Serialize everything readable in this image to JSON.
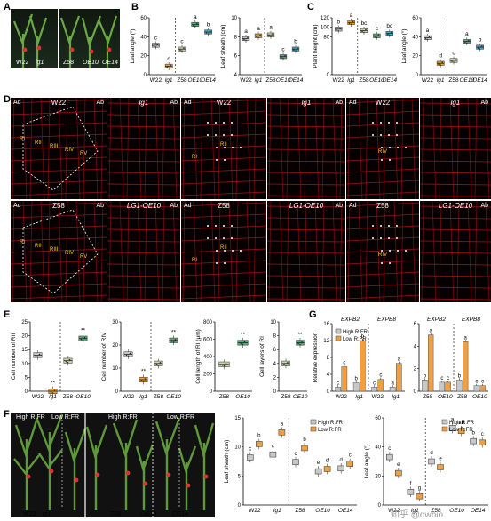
{
  "panels": {
    "A": {
      "label": "A",
      "left_label": "W22",
      "left_label2": "lg1",
      "right_labels": [
        "Z58",
        "OE10",
        "OE14"
      ]
    },
    "B": {
      "label": "B"
    },
    "C": {
      "label": "C"
    },
    "D": {
      "label": "D",
      "row1_titles": [
        "W22",
        "lg1",
        "W22",
        "lg1",
        "W22",
        "lg1"
      ],
      "row2_titles": [
        "Z58",
        "LG1-OE10",
        "Z58",
        "LG1-OE10",
        "Z58",
        "LG1-OE10"
      ],
      "ad": "Ad",
      "ab": "Ab",
      "region_tags": [
        "RI",
        "RII",
        "RIII",
        "RIV",
        "RV"
      ],
      "tag_RI": "RI",
      "tag_RII": "RII",
      "tag_RIV": "RIV"
    },
    "E": {
      "label": "E"
    },
    "F": {
      "label": "F",
      "high": "High R:FR",
      "low": "Low R:FR",
      "plants_left": [
        "W22",
        "lg1"
      ],
      "plants_right": [
        "Z58",
        "OE10",
        "OE14"
      ]
    },
    "G": {
      "label": "G"
    }
  },
  "colors": {
    "w22": "#c8c8c8",
    "lg1": "#f0a020",
    "z58": "#c8d8a8",
    "oe10": "#5aa878",
    "oe14": "#40a8c8",
    "high": "#c8c8c8",
    "low": "#f0a040"
  },
  "chart_data": [
    {
      "id": "B1",
      "type": "box",
      "ylabel": "Leaf angle (°)",
      "ylim": [
        0,
        60
      ],
      "yticks": [
        0,
        20,
        40,
        60
      ],
      "categories": [
        "W22",
        "lg1",
        "Z58",
        "OE10",
        "OE14"
      ],
      "medians": [
        31,
        9,
        27,
        53,
        45
      ],
      "letters": [
        "c",
        "d",
        "c",
        "a",
        "b"
      ]
    },
    {
      "id": "B2",
      "type": "box",
      "ylabel": "Leaf sheath (cm)",
      "ylim": [
        4,
        10
      ],
      "yticks": [
        4,
        6,
        8,
        10
      ],
      "categories": [
        "W22",
        "lg1",
        "Z58",
        "OE10",
        "OE14"
      ],
      "medians": [
        7.8,
        8.1,
        8.2,
        5.9,
        6.7
      ],
      "letters": [
        "a",
        "a",
        "a",
        "c",
        "b"
      ]
    },
    {
      "id": "C1",
      "type": "box",
      "ylabel": "Plant height (cm)",
      "ylim": [
        0,
        120
      ],
      "yticks": [
        0,
        80,
        100,
        120
      ],
      "categories": [
        "W22",
        "lg1",
        "Z58",
        "OE10",
        "OE14"
      ],
      "medians": [
        96,
        110,
        93,
        82,
        87
      ],
      "letters": [
        "b",
        "a",
        "bc",
        "c",
        "bc"
      ]
    },
    {
      "id": "C2",
      "type": "box",
      "ylabel": "Leaf angle (°)",
      "ylim": [
        0,
        60
      ],
      "yticks": [
        0,
        20,
        40,
        60
      ],
      "categories": [
        "W22",
        "lg1",
        "Z58",
        "OE10",
        "OE14"
      ],
      "medians": [
        39,
        12,
        15,
        35,
        29
      ],
      "letters": [
        "a",
        "d",
        "c",
        "a",
        "b"
      ]
    },
    {
      "id": "E1",
      "type": "box",
      "ylabel": "Cell number of RII",
      "ylim": [
        0,
        25
      ],
      "yticks": [
        0,
        5,
        10,
        15,
        20,
        25
      ],
      "categories": [
        "W22",
        "lg1",
        "Z58",
        "OE10"
      ],
      "medians": [
        13,
        0,
        11,
        19
      ],
      "letters": [
        "",
        "**",
        "",
        "**"
      ]
    },
    {
      "id": "E2",
      "type": "box",
      "ylabel": "Cell number of RIV",
      "ylim": [
        0,
        30
      ],
      "yticks": [
        0,
        10,
        20,
        30
      ],
      "categories": [
        "W22",
        "lg1",
        "Z58",
        "OE10"
      ],
      "medians": [
        16,
        5,
        12,
        22
      ],
      "letters": [
        "",
        "**",
        "",
        "**"
      ]
    },
    {
      "id": "E3",
      "type": "box",
      "ylabel": "Cell length of RI (μm)",
      "ylim": [
        0,
        800
      ],
      "yticks": [
        0,
        200,
        400,
        600,
        800
      ],
      "categories": [
        "Z58",
        "OE10"
      ],
      "medians": [
        310,
        560
      ],
      "letters": [
        "",
        "**"
      ]
    },
    {
      "id": "E4",
      "type": "box",
      "ylabel": "Cell layers of RI",
      "ylim": [
        0,
        10
      ],
      "yticks": [
        0,
        2,
        4,
        6,
        8,
        10
      ],
      "categories": [
        "Z58",
        "OE10"
      ],
      "medians": [
        4,
        7
      ],
      "letters": [
        "",
        "**"
      ]
    },
    {
      "id": "G1",
      "type": "bar",
      "ylabel": "Relative expression",
      "ylim": [
        0,
        16
      ],
      "yticks": [
        0,
        4,
        8,
        12,
        16
      ],
      "genes": [
        "EXPB2",
        "EXPB8"
      ],
      "categories": [
        "W22",
        "lg1",
        "W22",
        "lg1"
      ],
      "series": [
        {
          "name": "High R:FR",
          "values": [
            1,
            2,
            1,
            1
          ]
        },
        {
          "name": "Low R:FR",
          "values": [
            5.8,
            12,
            2.8,
            6.6
          ]
        }
      ],
      "letters": [
        [
          "c",
          "b",
          "c",
          "a"
        ],
        [
          "c",
          "b",
          "c",
          "a"
        ]
      ]
    },
    {
      "id": "G2",
      "type": "bar",
      "ylabel": "",
      "ylim": [
        0,
        6
      ],
      "yticks": [
        0,
        2,
        4,
        6
      ],
      "genes": [
        "EXPB2",
        "EXPB8"
      ],
      "categories": [
        "Z58",
        "OE10",
        "Z58",
        "OE10"
      ],
      "series": [
        {
          "name": "High R:FR",
          "values": [
            1,
            0.8,
            1,
            0.5
          ]
        },
        {
          "name": "Low R:FR",
          "values": [
            5,
            0.8,
            4.4,
            0.5
          ]
        }
      ],
      "letters": [
        [
          "b",
          "c",
          "b",
          "c"
        ],
        [
          "a",
          "c",
          "a",
          "c"
        ]
      ]
    },
    {
      "id": "F1",
      "type": "box",
      "ylabel": "Leaf sheath (cm)",
      "ylim": [
        0,
        15
      ],
      "yticks": [
        0,
        5,
        10,
        15
      ],
      "categories": [
        "W22",
        "lg1",
        "Z58",
        "OE10",
        "OE14"
      ],
      "series": [
        {
          "name": "High R:FR",
          "medians": [
            8.2,
            8.7,
            7.4,
            5.8,
            6.3
          ]
        },
        {
          "name": "Low R:FR",
          "medians": [
            10.5,
            12.5,
            9.8,
            6.2,
            7.1
          ]
        }
      ],
      "letters": [
        [
          "c",
          "c",
          "c",
          "e",
          "d"
        ],
        [
          "b",
          "a",
          "b",
          "d",
          "c"
        ]
      ]
    },
    {
      "id": "F2",
      "type": "box",
      "ylabel": "Leaf angle (°)",
      "ylim": [
        0,
        60
      ],
      "yticks": [
        0,
        20,
        40,
        60
      ],
      "categories": [
        "W22",
        "lg1",
        "Z58",
        "OE10",
        "OE14"
      ],
      "series": [
        {
          "name": "High R:FR",
          "medians": [
            33,
            9,
            30,
            53,
            44
          ]
        },
        {
          "name": "Low R:FR",
          "medians": [
            22,
            6,
            26,
            51,
            43
          ]
        }
      ],
      "letters": [
        [
          "c",
          "f",
          "d",
          "a",
          "b"
        ],
        [
          "e",
          "g",
          "e",
          "ab",
          "c"
        ]
      ]
    }
  ],
  "watermark": "知乎 @qwbio"
}
